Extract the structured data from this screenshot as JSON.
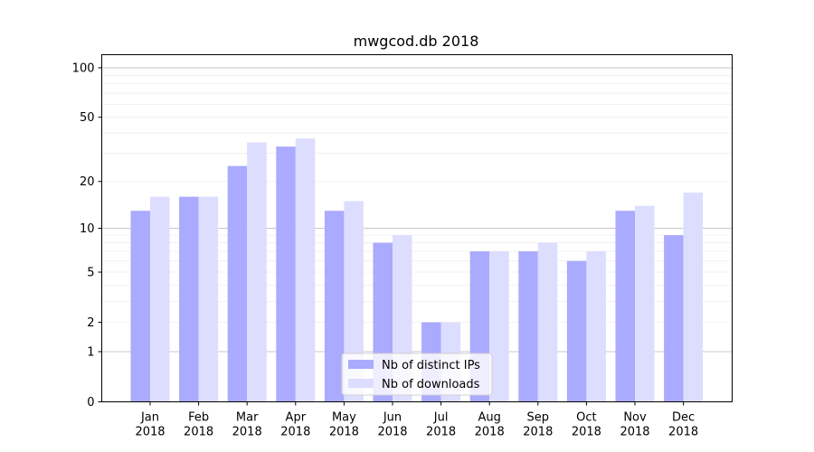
{
  "chart_data": {
    "type": "bar",
    "title": "mwgcod.db 2018",
    "xlabel": "",
    "ylabel": "",
    "yscale": "log(1+y)",
    "ylim": [
      0,
      120
    ],
    "yticks": [
      0,
      1,
      2,
      5,
      10,
      20,
      50,
      100
    ],
    "grid": "horizontal",
    "legend_position": "bottom-center",
    "categories": [
      [
        "Jan",
        "2018"
      ],
      [
        "Feb",
        "2018"
      ],
      [
        "Mar",
        "2018"
      ],
      [
        "Apr",
        "2018"
      ],
      [
        "May",
        "2018"
      ],
      [
        "Jun",
        "2018"
      ],
      [
        "Jul",
        "2018"
      ],
      [
        "Aug",
        "2018"
      ],
      [
        "Sep",
        "2018"
      ],
      [
        "Oct",
        "2018"
      ],
      [
        "Nov",
        "2018"
      ],
      [
        "Dec",
        "2018"
      ]
    ],
    "series": [
      {
        "name": "Nb of distinct IPs",
        "color": "#aaaaff",
        "values": [
          13,
          16,
          25,
          33,
          13,
          8,
          2,
          7,
          7,
          6,
          13,
          9
        ]
      },
      {
        "name": "Nb of downloads",
        "color": "#ddddff",
        "values": [
          16,
          16,
          35,
          37,
          15,
          9,
          2,
          7,
          8,
          7,
          14,
          17
        ]
      }
    ]
  }
}
